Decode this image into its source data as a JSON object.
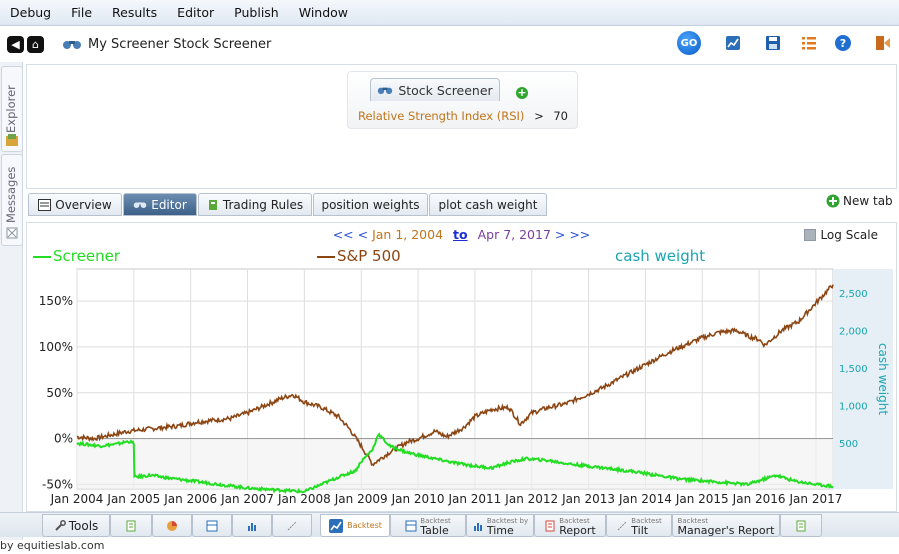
{
  "menu": [
    "Debug",
    "File",
    "Results",
    "Editor",
    "Publish",
    "Window"
  ],
  "toolbar": {
    "title": "My Screener Stock Screener",
    "go_label": "GO",
    "icons": [
      "chart-icon",
      "save-icon",
      "list-icon",
      "help-icon",
      "exit-icon"
    ]
  },
  "sidebar": {
    "explorer": "Explorer",
    "messages": "Messages"
  },
  "screener": {
    "tab_label": "Stock Screener",
    "rule_indicator": "Relative Strength Index (RSI)",
    "rule_operator": ">",
    "rule_value": "70"
  },
  "tabs": [
    "Overview",
    "Editor",
    "Trading Rules",
    "position weights",
    "plot cash weight"
  ],
  "new_tab": "New tab",
  "date_range": {
    "prev": "<< <",
    "start": "Jan 1, 2004",
    "to": "to",
    "end": "Apr 7, 2017",
    "next": "> >>"
  },
  "log_scale": "Log Scale",
  "legend": {
    "screener": "Screener",
    "sp500": "S&P 500",
    "cash": "cash weight"
  },
  "colors": {
    "screener": "#22dd22",
    "sp500": "#8b4513",
    "cash": "#1aa5b0"
  },
  "chart_data": {
    "type": "line",
    "x_labels": [
      "Jan 2004",
      "Jan 2005",
      "Jan 2006",
      "Jan 2007",
      "Jan 2008",
      "Jan 2009",
      "Jan 2010",
      "Jan 2011",
      "Jan 2012",
      "Jan 2013",
      "Jan 2014",
      "Jan 2015",
      "Jan 2016",
      "Jan 2017"
    ],
    "y_ticks": [
      "-50%",
      "0%",
      "50%",
      "100%",
      "150%"
    ],
    "ylim": [
      -55,
      185
    ],
    "y2_label": "cash weight",
    "y2_ticks": [
      "500",
      "1,000",
      "1,500",
      "2,000",
      "2,500"
    ],
    "xlim": [
      2004,
      2017.3
    ],
    "series": [
      {
        "name": "S&P 500",
        "x": [
          2004,
          2004.3,
          2004.6,
          2004.9,
          2005.2,
          2005.5,
          2005.8,
          2006.1,
          2006.4,
          2006.7,
          2007,
          2007.3,
          2007.6,
          2007.8,
          2008,
          2008.3,
          2008.6,
          2008.8,
          2009,
          2009.2,
          2009.5,
          2009.8,
          2010,
          2010.3,
          2010.5,
          2010.8,
          2011,
          2011.3,
          2011.6,
          2011.8,
          2012,
          2012.3,
          2012.6,
          2012.9,
          2013.2,
          2013.5,
          2013.8,
          2014.1,
          2014.4,
          2014.7,
          2015,
          2015.3,
          2015.6,
          2015.8,
          2016,
          2016.1,
          2016.4,
          2016.7,
          2017,
          2017.3
        ],
        "y": [
          2,
          0,
          4,
          8,
          10,
          12,
          14,
          18,
          20,
          22,
          28,
          36,
          44,
          48,
          40,
          34,
          24,
          10,
          -8,
          -28,
          -15,
          -4,
          0,
          8,
          2,
          12,
          24,
          32,
          34,
          16,
          28,
          34,
          38,
          46,
          54,
          64,
          74,
          84,
          94,
          102,
          110,
          116,
          118,
          112,
          108,
          102,
          118,
          128,
          148,
          168
        ]
      },
      {
        "name": "Screener",
        "x": [
          2004,
          2004.4,
          2004.7,
          2004.9,
          2005.0,
          2005.01,
          2005.3,
          2005.6,
          2006,
          2006.5,
          2007,
          2007.5,
          2008,
          2008.3,
          2008.6,
          2008.9,
          2009,
          2009.2,
          2009.3,
          2009.5,
          2009.8,
          2010,
          2010.3,
          2010.6,
          2011,
          2011.3,
          2011.6,
          2011.9,
          2012.3,
          2012.7,
          2013,
          2013.4,
          2013.8,
          2014.2,
          2014.6,
          2015,
          2015.4,
          2015.8,
          2016.1,
          2016.3,
          2016.6,
          2017,
          2017.3
        ],
        "y": [
          -5,
          -8,
          -6,
          -3,
          -5,
          -42,
          -40,
          -43,
          -46,
          -50,
          -54,
          -56,
          -58,
          -50,
          -42,
          -35,
          -25,
          -12,
          5,
          -8,
          -15,
          -18,
          -22,
          -26,
          -30,
          -32,
          -26,
          -22,
          -24,
          -28,
          -30,
          -33,
          -36,
          -40,
          -44,
          -46,
          -48,
          -50,
          -44,
          -40,
          -46,
          -50,
          -52
        ]
      }
    ]
  }
}
